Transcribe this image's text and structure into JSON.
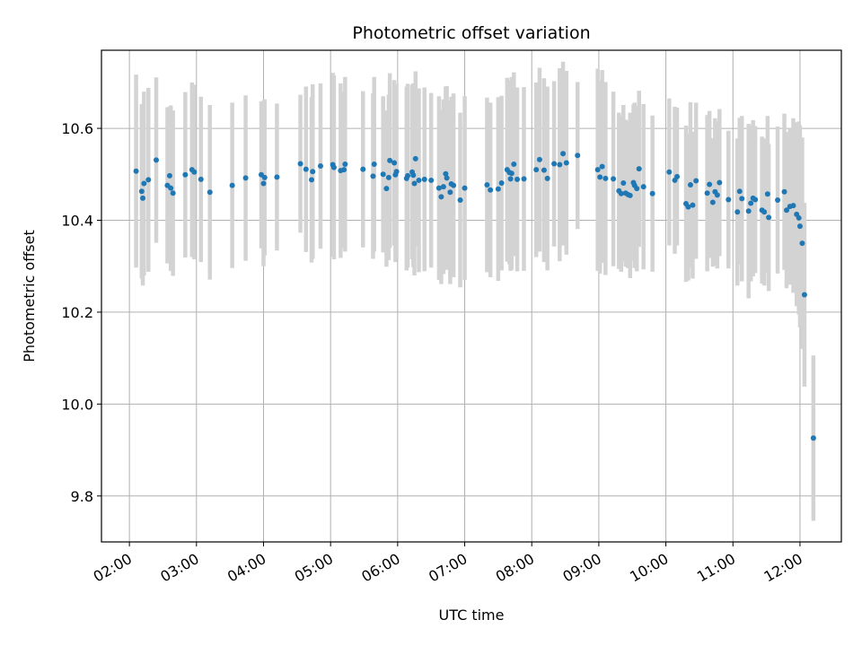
{
  "chart_data": {
    "type": "scatter",
    "title": "Photometric offset variation",
    "xlabel": "UTC time",
    "ylabel": "Photometric offset",
    "x_unit": "UTC time (HH:MM)",
    "xlim": [
      "01:35",
      "12:37"
    ],
    "ylim": [
      9.7,
      10.77
    ],
    "x_ticks": [
      "02:00",
      "03:00",
      "04:00",
      "05:00",
      "06:00",
      "07:00",
      "08:00",
      "09:00",
      "10:00",
      "11:00",
      "12:00"
    ],
    "y_ticks": [
      "9.8",
      "10.0",
      "10.2",
      "10.4",
      "10.6"
    ],
    "grid": true,
    "legend": "none",
    "colors": {
      "points": "#1f77b4",
      "errorbars": "#d3d3d3",
      "grid": "#b0b0b0"
    },
    "points": [
      [
        "02:06",
        10.507,
        0.21
      ],
      [
        "02:11",
        10.463,
        0.19
      ],
      [
        "02:12",
        10.448,
        0.19
      ],
      [
        "02:13",
        10.48,
        0.2
      ],
      [
        "02:17",
        10.488,
        0.2
      ],
      [
        "02:24",
        10.531,
        0.18
      ],
      [
        "02:34",
        10.476,
        0.17
      ],
      [
        "02:36",
        10.497,
        0.15
      ],
      [
        "02:37",
        10.47,
        0.18
      ],
      [
        "02:39",
        10.459,
        0.18
      ],
      [
        "02:50",
        10.499,
        0.18
      ],
      [
        "02:56",
        10.51,
        0.19
      ],
      [
        "02:58",
        10.505,
        0.19
      ],
      [
        "03:04",
        10.489,
        0.18
      ],
      [
        "03:12",
        10.461,
        0.19
      ],
      [
        "03:32",
        10.476,
        0.18
      ],
      [
        "03:44",
        10.492,
        0.18
      ],
      [
        "03:58",
        10.499,
        0.16
      ],
      [
        "04:00",
        10.48,
        0.18
      ],
      [
        "04:01",
        10.493,
        0.17
      ],
      [
        "04:12",
        10.494,
        0.16
      ],
      [
        "04:33",
        10.523,
        0.15
      ],
      [
        "04:38",
        10.511,
        0.18
      ],
      [
        "04:43",
        10.488,
        0.18
      ],
      [
        "04:44",
        10.506,
        0.19
      ],
      [
        "04:51",
        10.518,
        0.18
      ],
      [
        "05:02",
        10.521,
        0.2
      ],
      [
        "05:03",
        10.515,
        0.2
      ],
      [
        "05:09",
        10.508,
        0.19
      ],
      [
        "05:12",
        10.51,
        0.17
      ],
      [
        "05:13",
        10.522,
        0.19
      ],
      [
        "05:29",
        10.511,
        0.17
      ],
      [
        "05:38",
        10.496,
        0.18
      ],
      [
        "05:39",
        10.522,
        0.19
      ],
      [
        "05:47",
        10.5,
        0.17
      ],
      [
        "05:50",
        10.469,
        0.17
      ],
      [
        "05:52",
        10.493,
        0.18
      ],
      [
        "05:53",
        10.53,
        0.19
      ],
      [
        "05:57",
        10.525,
        0.18
      ],
      [
        "05:58",
        10.499,
        0.19
      ],
      [
        "05:59",
        10.506,
        0.19
      ],
      [
        "06:08",
        10.491,
        0.2
      ],
      [
        "06:09",
        10.497,
        0.2
      ],
      [
        "06:13",
        10.505,
        0.19
      ],
      [
        "06:14",
        10.498,
        0.2
      ],
      [
        "06:15",
        10.48,
        0.2
      ],
      [
        "06:16",
        10.534,
        0.19
      ],
      [
        "06:19",
        10.487,
        0.2
      ],
      [
        "06:24",
        10.489,
        0.2
      ],
      [
        "06:30",
        10.487,
        0.19
      ],
      [
        "06:37",
        10.47,
        0.2
      ],
      [
        "06:39",
        10.451,
        0.19
      ],
      [
        "06:41",
        10.473,
        0.19
      ],
      [
        "06:43",
        10.501,
        0.19
      ],
      [
        "06:44",
        10.492,
        0.2
      ],
      [
        "06:47",
        10.461,
        0.2
      ],
      [
        "06:48",
        10.479,
        0.19
      ],
      [
        "06:50",
        10.476,
        0.2
      ],
      [
        "06:56",
        10.444,
        0.19
      ],
      [
        "07:00",
        10.47,
        0.2
      ],
      [
        "07:20",
        10.477,
        0.19
      ],
      [
        "07:23",
        10.466,
        0.19
      ],
      [
        "07:30",
        10.468,
        0.2
      ],
      [
        "07:33",
        10.481,
        0.19
      ],
      [
        "07:38",
        10.51,
        0.2
      ],
      [
        "07:40",
        10.504,
        0.2
      ],
      [
        "07:41",
        10.49,
        0.2
      ],
      [
        "07:42",
        10.502,
        0.21
      ],
      [
        "07:44",
        10.522,
        0.2
      ],
      [
        "07:47",
        10.489,
        0.2
      ],
      [
        "07:53",
        10.49,
        0.2
      ],
      [
        "08:04",
        10.51,
        0.19
      ],
      [
        "08:07",
        10.532,
        0.2
      ],
      [
        "08:11",
        10.509,
        0.2
      ],
      [
        "08:14",
        10.491,
        0.2
      ],
      [
        "08:20",
        10.523,
        0.18
      ],
      [
        "08:25",
        10.521,
        0.21
      ],
      [
        "08:28",
        10.545,
        0.2
      ],
      [
        "08:31",
        10.525,
        0.2
      ],
      [
        "08:41",
        10.541,
        0.16
      ],
      [
        "08:59",
        10.51,
        0.22
      ],
      [
        "09:01",
        10.494,
        0.21
      ],
      [
        "09:03",
        10.517,
        0.21
      ],
      [
        "09:06",
        10.491,
        0.21
      ],
      [
        "09:13",
        10.49,
        0.19
      ],
      [
        "09:18",
        10.464,
        0.17
      ],
      [
        "09:20",
        10.458,
        0.17
      ],
      [
        "09:22",
        10.481,
        0.17
      ],
      [
        "09:24",
        10.459,
        0.16
      ],
      [
        "09:26",
        10.456,
        0.16
      ],
      [
        "09:28",
        10.454,
        0.18
      ],
      [
        "09:31",
        10.482,
        0.17
      ],
      [
        "09:32",
        10.476,
        0.18
      ],
      [
        "09:34",
        10.469,
        0.18
      ],
      [
        "09:36",
        10.512,
        0.17
      ],
      [
        "09:40",
        10.473,
        0.18
      ],
      [
        "09:48",
        10.458,
        0.17
      ],
      [
        "10:03",
        10.505,
        0.16
      ],
      [
        "10:08",
        10.487,
        0.16
      ],
      [
        "10:10",
        10.495,
        0.15
      ],
      [
        "10:18",
        10.436,
        0.17
      ],
      [
        "10:20",
        10.429,
        0.16
      ],
      [
        "10:22",
        10.477,
        0.18
      ],
      [
        "10:24",
        10.433,
        0.16
      ],
      [
        "10:27",
        10.486,
        0.17
      ],
      [
        "10:37",
        10.459,
        0.17
      ],
      [
        "10:39",
        10.478,
        0.16
      ],
      [
        "10:42",
        10.439,
        0.14
      ],
      [
        "10:44",
        10.462,
        0.16
      ],
      [
        "10:46",
        10.455,
        0.16
      ],
      [
        "10:48",
        10.482,
        0.16
      ],
      [
        "10:56",
        10.445,
        0.15
      ],
      [
        "11:04",
        10.418,
        0.16
      ],
      [
        "11:06",
        10.463,
        0.16
      ],
      [
        "11:08",
        10.447,
        0.18
      ],
      [
        "11:14",
        10.42,
        0.19
      ],
      [
        "11:16",
        10.437,
        0.17
      ],
      [
        "11:18",
        10.448,
        0.17
      ],
      [
        "11:20",
        10.445,
        0.16
      ],
      [
        "11:26",
        10.422,
        0.16
      ],
      [
        "11:28",
        10.418,
        0.16
      ],
      [
        "11:31",
        10.457,
        0.17
      ],
      [
        "11:32",
        10.406,
        0.16
      ],
      [
        "11:40",
        10.444,
        0.16
      ],
      [
        "11:46",
        10.462,
        0.17
      ],
      [
        "11:48",
        10.422,
        0.17
      ],
      [
        "11:51",
        10.43,
        0.17
      ],
      [
        "11:54",
        10.432,
        0.19
      ],
      [
        "11:57",
        10.413,
        0.2
      ],
      [
        "11:59",
        10.405,
        0.21
      ],
      [
        "12:00",
        10.387,
        0.22
      ],
      [
        "12:02",
        10.35,
        0.23
      ],
      [
        "12:04",
        10.238,
        0.2
      ],
      [
        "12:12",
        9.926,
        0.18
      ]
    ]
  }
}
